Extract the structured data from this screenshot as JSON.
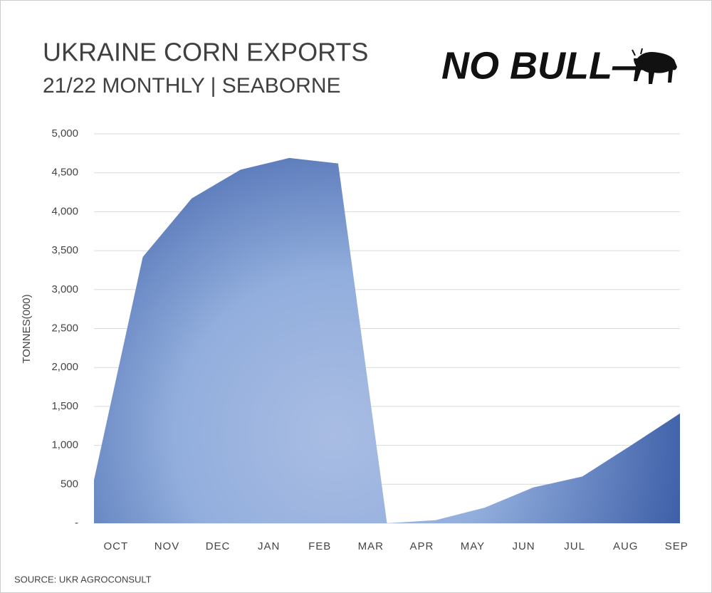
{
  "chart_data": {
    "type": "area",
    "title": "UKRAINE CORN EXPORTS",
    "subtitle": "21/22 MONTHLY | SEABORNE",
    "logo": "NO BULL—",
    "y_label": "TONNES(000)",
    "source": "SOURCE: UKR AGROCONSULT",
    "categories": [
      null,
      "OCT",
      "NOV",
      "DEC",
      "JAN",
      "FEB",
      "MAR",
      "APR",
      "MAY",
      "JUN",
      "JUL",
      "AUG",
      "SEP"
    ],
    "values": [
      555,
      3420,
      4170,
      4540,
      4690,
      4620,
      0,
      40,
      200,
      460,
      600,
      1000,
      1410
    ],
    "color": "#4a6db3",
    "ylim": [
      0,
      5000
    ],
    "yticks": [
      {
        "value": 0,
        "label": "-"
      },
      500,
      {
        "value": 1000,
        "label": "1,000"
      },
      {
        "value": 1500,
        "label": "1,500"
      },
      {
        "value": 2000,
        "label": "2,000"
      },
      {
        "value": 2500,
        "label": "2,500"
      },
      {
        "value": 3000,
        "label": "3,000"
      },
      {
        "value": 3500,
        "label": "3,500"
      },
      {
        "value": 4000,
        "label": "4,000"
      },
      {
        "value": 4500,
        "label": "4,500"
      },
      {
        "value": 5000,
        "label": "5,000"
      }
    ],
    "grid": true
  }
}
